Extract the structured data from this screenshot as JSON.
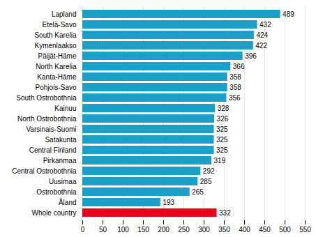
{
  "chart_data": {
    "type": "bar",
    "orientation": "horizontal",
    "categories": [
      "Whole country",
      "Åland",
      "Ostrobothnia",
      "Uusimaa",
      "Central Ostrobothnia",
      "Pirkanmaa",
      "Central Finland",
      "Satakunta",
      "Varsinais-Suomi",
      "North Ostrobothnia",
      "Kainuu",
      "South Ostrobothnia",
      "Pohjois-Savo",
      "Kanta-Häme",
      "North Karelia",
      "Päijät-Häme",
      "Kymenlaakso",
      "South Karelia",
      "Etelä-Savo",
      "Lapland"
    ],
    "values": [
      332,
      193,
      265,
      285,
      292,
      319,
      325,
      325,
      325,
      326,
      328,
      356,
      358,
      358,
      366,
      396,
      422,
      424,
      432,
      489
    ],
    "colors": [
      "#e8001c",
      "#1ca0c8",
      "#1ca0c8",
      "#1ca0c8",
      "#1ca0c8",
      "#1ca0c8",
      "#1ca0c8",
      "#1ca0c8",
      "#1ca0c8",
      "#1ca0c8",
      "#1ca0c8",
      "#1ca0c8",
      "#1ca0c8",
      "#1ca0c8",
      "#1ca0c8",
      "#1ca0c8",
      "#1ca0c8",
      "#1ca0c8",
      "#1ca0c8",
      "#1ca0c8"
    ],
    "xlim": [
      0,
      550
    ],
    "xticks": [
      0,
      50,
      100,
      150,
      200,
      250,
      300,
      350,
      400,
      450,
      500,
      550
    ],
    "grid": true,
    "data_labels": true
  }
}
